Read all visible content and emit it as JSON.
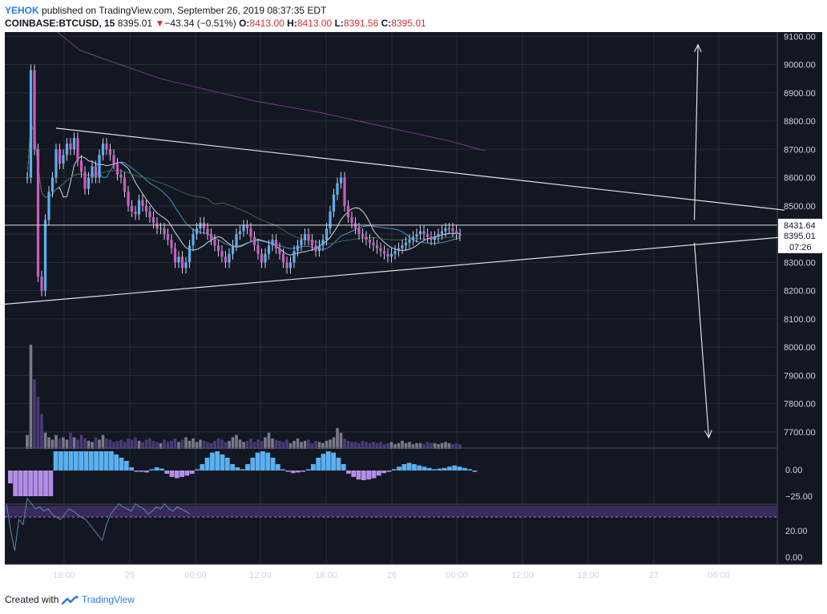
{
  "header": {
    "author": "YEHOK",
    "published_text": "published on TradingView.com, September 26, 2019 08:37:35 EDT",
    "symbol": "COINBASE:BTCUSD, 15",
    "last_price": "8395.01",
    "change_arrow": "▼",
    "change": "−43.34 (−0.51%)",
    "open_label": "O:",
    "open": "8413.00",
    "high_label": "H:",
    "high": "8413.00",
    "low_label": "L:",
    "low": "8391.56",
    "close_label": "C:",
    "close": "8395.01"
  },
  "footer": {
    "created_with": "Created with",
    "brand": "TradingView"
  },
  "colors": {
    "background": "#131722",
    "grid": "#2a2e39",
    "candle_up": "#5ab0f0",
    "candle_down": "#d05ac0",
    "wick": "#c8d0e0",
    "ma_fast": "#4a90c8",
    "ma_mid": "#3a6a4a",
    "ma_slow": "#7a3a8a",
    "trendline": "#e0e0e0",
    "histogram_up": "#5ab0f0",
    "histogram_down": "#b48ee6",
    "rsi_band": "#3a2a5a",
    "label_bg_white": "#ffffff",
    "label_bg_dark": "#131722"
  },
  "chart_data": {
    "type": "candlestick",
    "price_axis": {
      "ticks": [
        "9100.00",
        "9000.00",
        "8900.00",
        "8800.00",
        "8700.00",
        "8600.00",
        "8500.00",
        "8400.00",
        "8300.00",
        "8200.00",
        "8100.00",
        "8000.00",
        "7900.00",
        "7800.00",
        "7700.00"
      ],
      "ylim": [
        7640,
        9115
      ],
      "horizontal_line": "8431.64",
      "last_price_label": "8395.01",
      "countdown_label": "07:26"
    },
    "time_axis": {
      "labels": [
        "18:00",
        "25",
        "06:00",
        "12:00",
        "18:00",
        "26",
        "06:00",
        "12:00",
        "18:00",
        "27",
        "06:00"
      ]
    },
    "macd_axis": {
      "ticks": [
        "0.00",
        "−25.00"
      ]
    },
    "rsi_axis": {
      "ticks": [
        "20.00",
        "0.00"
      ]
    },
    "trendlines": [
      {
        "name": "upper",
        "from": {
          "bar": 8,
          "price": 8775
        },
        "to": {
          "bar": 210,
          "price": 8485
        }
      },
      {
        "name": "lower",
        "from": {
          "bar": -8,
          "price": 8150
        },
        "to": {
          "bar": 210,
          "price": 8390
        }
      }
    ],
    "arrows": [
      {
        "direction": "up",
        "from": {
          "bar": 185,
          "price": 8450
        },
        "to": {
          "bar": 186,
          "price": 9070
        }
      },
      {
        "direction": "down",
        "from": {
          "bar": 185,
          "price": 8370
        },
        "to": {
          "bar": 189,
          "price": 7680
        }
      }
    ],
    "closes": [
      8600,
      8980,
      8700,
      8250,
      8200,
      8450,
      8550,
      8600,
      8700,
      8650,
      8680,
      8720,
      8700,
      8740,
      8660,
      8620,
      8560,
      8600,
      8640,
      8600,
      8680,
      8720,
      8700,
      8680,
      8650,
      8610,
      8600,
      8550,
      8500,
      8480,
      8470,
      8520,
      8500,
      8480,
      8460,
      8440,
      8420,
      8420,
      8400,
      8380,
      8350,
      8300,
      8320,
      8280,
      8300,
      8360,
      8400,
      8420,
      8440,
      8420,
      8400,
      8380,
      8360,
      8340,
      8320,
      8300,
      8330,
      8360,
      8400,
      8410,
      8430,
      8420,
      8390,
      8360,
      8330,
      8300,
      8330,
      8360,
      8380,
      8350,
      8330,
      8300,
      8280,
      8300,
      8340,
      8360,
      8380,
      8400,
      8380,
      8360,
      8340,
      8360,
      8380,
      8420,
      8480,
      8540,
      8580,
      8600,
      8500,
      8460,
      8440,
      8420,
      8400,
      8390,
      8380,
      8370,
      8360,
      8350,
      8340,
      8330,
      8320,
      8330,
      8340,
      8350,
      8360,
      8370,
      8380,
      8390,
      8400,
      8410,
      8400,
      8390,
      8380,
      8390,
      8400,
      8410,
      8420,
      8420,
      8410,
      8400,
      8395
    ],
    "volumes": [
      12,
      90,
      60,
      45,
      30,
      14,
      10,
      8,
      12,
      9,
      10,
      8,
      14,
      10,
      8,
      12,
      9,
      7,
      6,
      10,
      8,
      12,
      9,
      8,
      6,
      7,
      8,
      6,
      9,
      8,
      10,
      7,
      6,
      8,
      9,
      7,
      6,
      5,
      8,
      6,
      7,
      9,
      6,
      8,
      10,
      7,
      9,
      6,
      8,
      7,
      6,
      5,
      7,
      9,
      8,
      6,
      7,
      10,
      12,
      8,
      6,
      7,
      9,
      6,
      8,
      7,
      10,
      14,
      9,
      8,
      7,
      6,
      8,
      5,
      7,
      9,
      6,
      7,
      8,
      5,
      7,
      6,
      5,
      7,
      8,
      10,
      18,
      14,
      9,
      7,
      6,
      6,
      5,
      7,
      6,
      5,
      6,
      5,
      6,
      4,
      5,
      6,
      4,
      5,
      7,
      5,
      6,
      4,
      5,
      5,
      4,
      6,
      5,
      5,
      4,
      5,
      6,
      5,
      4,
      5,
      4
    ],
    "macd": [
      -20,
      -40,
      -40,
      -40,
      -40,
      -40,
      -40,
      -40,
      -40,
      30,
      30,
      30,
      30,
      30,
      30,
      30,
      30,
      30,
      30,
      30,
      30,
      25,
      20,
      15,
      5,
      -2,
      -2,
      -3,
      2,
      5,
      3,
      -5,
      -10,
      -12,
      -10,
      -8,
      -5,
      2,
      10,
      20,
      28,
      30,
      25,
      20,
      10,
      5,
      2,
      10,
      20,
      28,
      30,
      28,
      20,
      10,
      2,
      -2,
      -4,
      -3,
      -2,
      2,
      10,
      20,
      26,
      30,
      28,
      20,
      10,
      -5,
      -10,
      -14,
      -15,
      -14,
      -12,
      -8,
      -4,
      -2,
      2,
      6,
      10,
      12,
      10,
      8,
      6,
      4,
      2,
      3,
      4,
      6,
      8,
      6,
      4,
      2,
      -2
    ],
    "rsi": [
      55,
      30,
      10,
      40,
      35,
      60,
      55,
      50,
      52,
      48,
      50,
      45,
      42,
      40,
      45,
      50,
      48,
      45,
      42,
      40,
      35,
      30,
      25,
      20,
      35,
      45,
      50,
      55,
      52,
      50,
      48,
      55,
      52,
      50,
      45,
      48,
      52,
      50,
      55,
      50,
      48,
      52,
      50,
      48,
      45
    ]
  }
}
